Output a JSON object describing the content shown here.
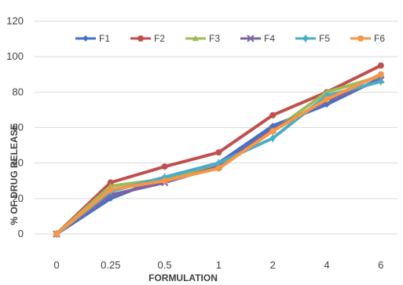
{
  "chart_data": {
    "type": "line",
    "title": "",
    "xlabel": "FORMULATION",
    "ylabel": "% OF DRUG RELEASE",
    "categories": [
      "0",
      "0.25",
      "0.5",
      "1",
      "2",
      "4",
      "6"
    ],
    "ylim": [
      0,
      120
    ],
    "yticks": [
      "0",
      "20",
      "40",
      "60",
      "80",
      "100",
      "120"
    ],
    "grid": "horizontal",
    "legend_position": "top",
    "series": [
      {
        "name": "F1",
        "color": "#4472C4",
        "marker": "diamond",
        "values": [
          0,
          20,
          32,
          40,
          61,
          73,
          88
        ]
      },
      {
        "name": "F2",
        "color": "#C0504D",
        "marker": "circle",
        "values": [
          0,
          29,
          38,
          46,
          67,
          80,
          95
        ]
      },
      {
        "name": "F3",
        "color": "#9BBB59",
        "marker": "triangle",
        "values": [
          0,
          27,
          31,
          38,
          58,
          80,
          89
        ]
      },
      {
        "name": "F4",
        "color": "#8064A2",
        "marker": "x",
        "values": [
          0,
          22,
          29,
          38,
          59,
          75,
          87
        ]
      },
      {
        "name": "F5",
        "color": "#4BACC6",
        "marker": "star",
        "values": [
          0,
          24,
          32,
          40,
          54,
          78,
          86
        ]
      },
      {
        "name": "F6",
        "color": "#F79646",
        "marker": "circle",
        "values": [
          0,
          25,
          30,
          37,
          58,
          76,
          90
        ]
      }
    ]
  }
}
